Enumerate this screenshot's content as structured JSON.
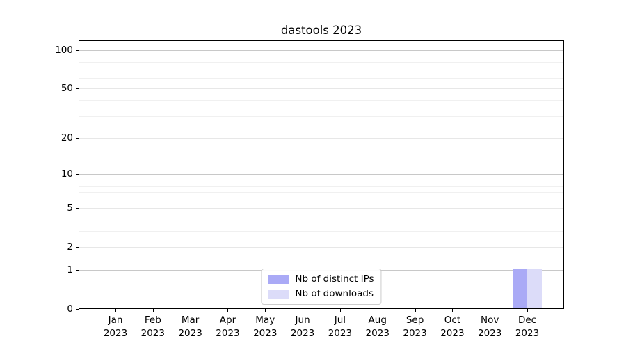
{
  "title": "dastools 2023",
  "chart_data": {
    "type": "bar",
    "title": "dastools 2023",
    "x_categories": [
      "Jan",
      "Feb",
      "Mar",
      "Apr",
      "May",
      "Jun",
      "Jul",
      "Aug",
      "Sep",
      "Oct",
      "Nov",
      "Dec"
    ],
    "x_year": "2023",
    "series": [
      {
        "name": "Nb of distinct IPs",
        "color": "#aaaaf6",
        "values": [
          0,
          0,
          0,
          0,
          0,
          0,
          0,
          0,
          0,
          0,
          0,
          1
        ]
      },
      {
        "name": "Nb of downloads",
        "color": "#dcdcf9",
        "values": [
          0,
          0,
          0,
          0,
          0,
          0,
          0,
          0,
          0,
          0,
          0,
          1
        ]
      }
    ],
    "y_scale": "log10(value+1)",
    "y_ticks": [
      0,
      1,
      2,
      5,
      10,
      20,
      50,
      100
    ],
    "y_decade_gridlines": [
      1,
      10,
      100
    ],
    "y_major_gridlines": [
      2,
      5,
      20,
      50
    ],
    "y_minor_gridlines": [
      3,
      4,
      6,
      7,
      8,
      9,
      30,
      40,
      60,
      70,
      80,
      90
    ],
    "ylim": [
      0,
      117
    ],
    "grid": true,
    "legend": {
      "position": "lower center",
      "entries": [
        "Nb of distinct IPs",
        "Nb of downloads"
      ]
    },
    "colors": {
      "background": "#ffffff",
      "spine": "#000000",
      "text": "#000000",
      "grid_decade": "#c8c8c8",
      "grid_major": "#e7e7e7",
      "grid_minor": "#f0f0f0"
    }
  }
}
